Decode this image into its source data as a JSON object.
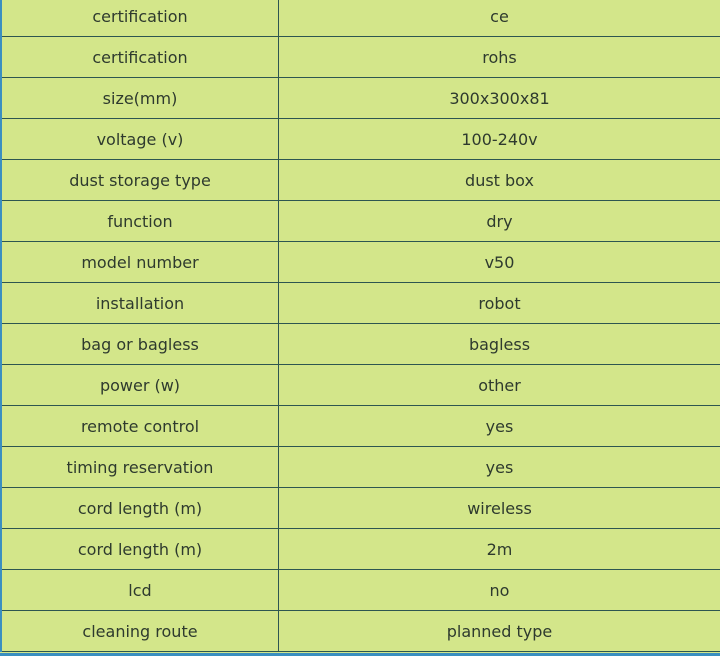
{
  "rows": [
    [
      "certification",
      "ce"
    ],
    [
      "certification",
      "rohs"
    ],
    [
      "size(mm)",
      "300x300x81"
    ],
    [
      "voltage (v)",
      "100-240v"
    ],
    [
      "dust storage type",
      "dust box"
    ],
    [
      "function",
      "dry"
    ],
    [
      "model number",
      "v50"
    ],
    [
      "installation",
      "robot"
    ],
    [
      "bag or bagless",
      "bagless"
    ],
    [
      "power (w)",
      "other"
    ],
    [
      "remote control",
      "yes"
    ],
    [
      "timing reservation",
      "yes"
    ],
    [
      "cord length (m)",
      "wireless"
    ],
    [
      "cord length (m)",
      "2m"
    ],
    [
      "lcd",
      "no"
    ],
    [
      "cleaning route",
      "planned type"
    ]
  ],
  "colors": {
    "background": "#d3e68a",
    "border": "#2d5650",
    "edge": "#3a8fc0"
  }
}
